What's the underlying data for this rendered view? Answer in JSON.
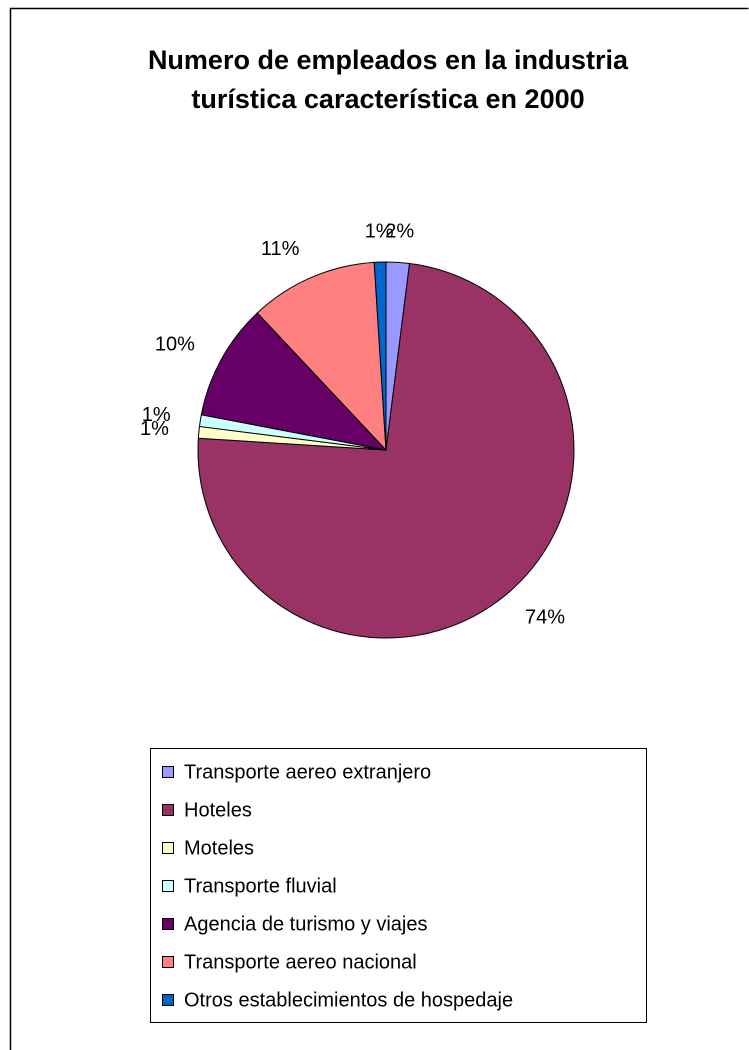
{
  "chart_data": {
    "type": "pie",
    "title": [
      "Numero de empleados en la industria",
      "turística característica en 2000"
    ],
    "categories": [
      "Transporte aereo extranjero",
      "Hoteles",
      "Moteles",
      "Transporte fluvial",
      "Agencia de turismo y viajes",
      "Transporte aereo nacional",
      "Otros establecimientos de hospedaje"
    ],
    "values": [
      2,
      74,
      1,
      1,
      10,
      11,
      1
    ],
    "value_labels": [
      "2%",
      "74%",
      "1%",
      "1%",
      "10%",
      "11%",
      "1%"
    ],
    "colors": [
      "#9999ff",
      "#993366",
      "#ffffcc",
      "#ccffff",
      "#660066",
      "#ff8080",
      "#0066cc"
    ],
    "legend": "bottom"
  }
}
